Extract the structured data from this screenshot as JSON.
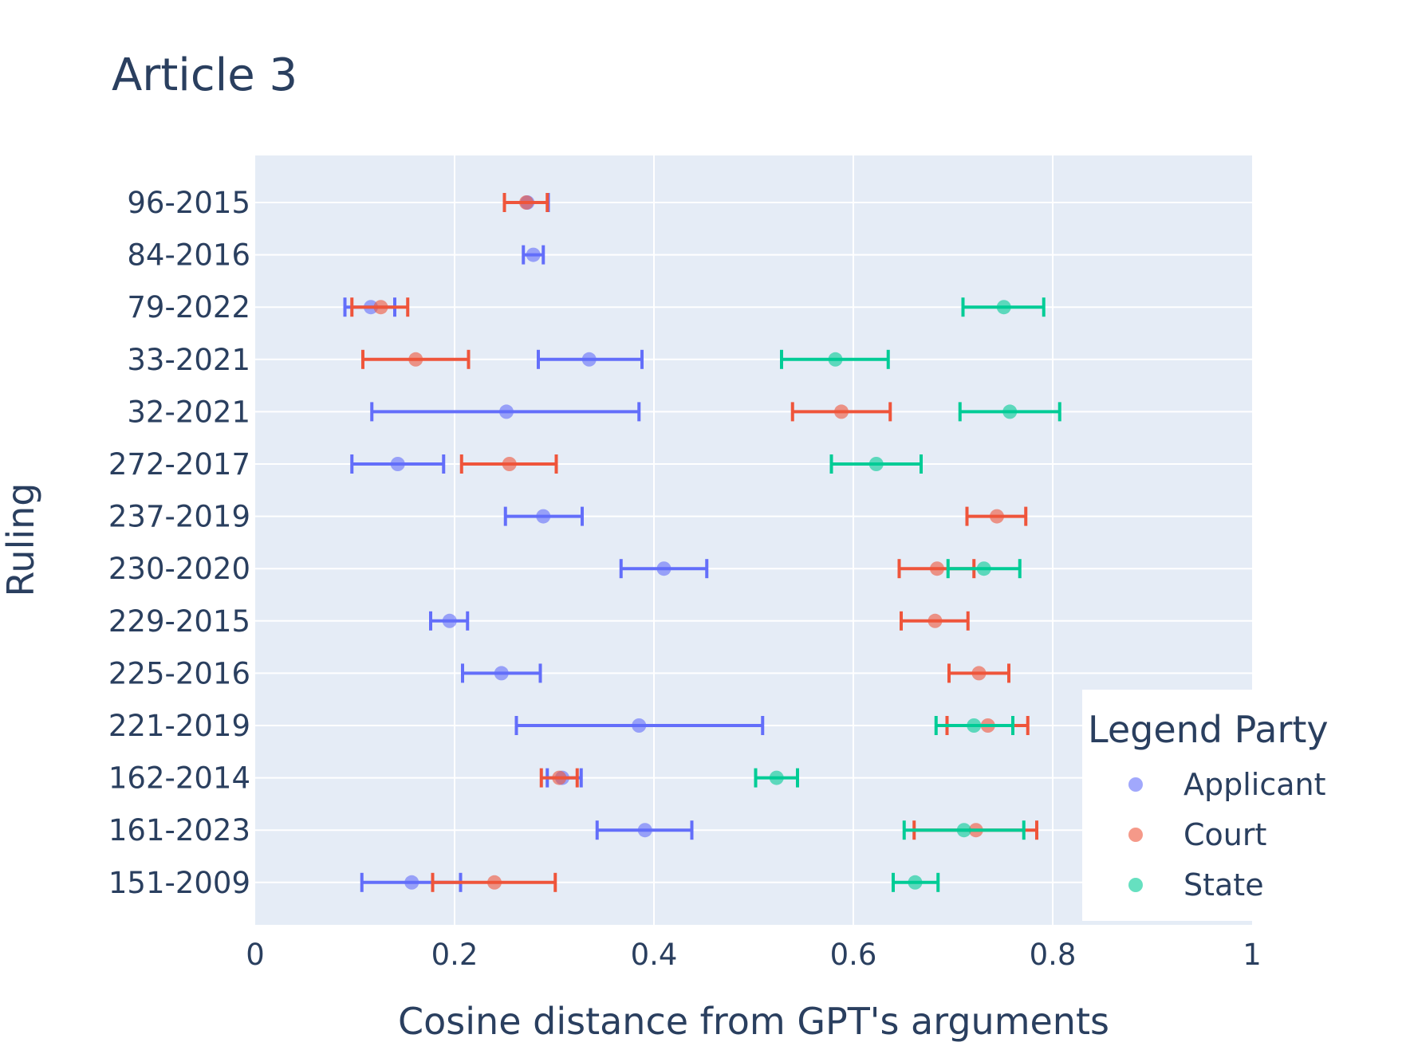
{
  "chart_data": {
    "type": "scatter",
    "title": "Article 3",
    "xlabel": "Cosine distance from GPT's arguments",
    "ylabel": "Ruling",
    "xlim": [
      0,
      1
    ],
    "xticks": [
      0,
      0.2,
      0.4,
      0.6,
      0.8,
      1
    ],
    "xtick_labels": [
      "0",
      "0.2",
      "0.4",
      "0.6",
      "0.8",
      "1"
    ],
    "grid": true,
    "error_bars": true,
    "categories": [
      "96-2015",
      "84-2016",
      "79-2022",
      "33-2021",
      "32-2021",
      "272-2017",
      "237-2019",
      "230-2020",
      "229-2015",
      "225-2016",
      "221-2019",
      "162-2014",
      "161-2023",
      "151-2009"
    ],
    "legend": {
      "title": "Legend Party",
      "position": "right"
    },
    "series": [
      {
        "name": "Applicant",
        "color": "#636efa",
        "points": [
          {
            "y": "96-2015",
            "x": 0.273,
            "lo": 0.25,
            "hi": 0.294
          },
          {
            "y": "84-2016",
            "x": 0.279,
            "lo": 0.269,
            "hi": 0.289
          },
          {
            "y": "79-2022",
            "x": 0.116,
            "lo": 0.09,
            "hi": 0.14
          },
          {
            "y": "33-2021",
            "x": 0.335,
            "lo": 0.284,
            "hi": 0.388
          },
          {
            "y": "32-2021",
            "x": 0.252,
            "lo": 0.117,
            "hi": 0.385
          },
          {
            "y": "272-2017",
            "x": 0.143,
            "lo": 0.097,
            "hi": 0.189
          },
          {
            "y": "237-2019",
            "x": 0.289,
            "lo": 0.251,
            "hi": 0.328
          },
          {
            "y": "230-2020",
            "x": 0.41,
            "lo": 0.367,
            "hi": 0.453
          },
          {
            "y": "229-2015",
            "x": 0.195,
            "lo": 0.176,
            "hi": 0.213
          },
          {
            "y": "225-2016",
            "x": 0.247,
            "lo": 0.208,
            "hi": 0.286
          },
          {
            "y": "221-2019",
            "x": 0.385,
            "lo": 0.262,
            "hi": 0.509
          },
          {
            "y": "162-2014",
            "x": 0.308,
            "lo": 0.293,
            "hi": 0.327
          },
          {
            "y": "161-2023",
            "x": 0.391,
            "lo": 0.343,
            "hi": 0.438
          },
          {
            "y": "151-2009",
            "x": 0.157,
            "lo": 0.107,
            "hi": 0.206
          }
        ]
      },
      {
        "name": "Court",
        "color": "#ef553b",
        "points": [
          {
            "y": "96-2015",
            "x": 0.272,
            "lo": 0.25,
            "hi": 0.293
          },
          {
            "y": "79-2022",
            "x": 0.126,
            "lo": 0.097,
            "hi": 0.153
          },
          {
            "y": "33-2021",
            "x": 0.161,
            "lo": 0.108,
            "hi": 0.214
          },
          {
            "y": "32-2021",
            "x": 0.588,
            "lo": 0.539,
            "hi": 0.637
          },
          {
            "y": "272-2017",
            "x": 0.255,
            "lo": 0.207,
            "hi": 0.302
          },
          {
            "y": "237-2019",
            "x": 0.744,
            "lo": 0.714,
            "hi": 0.773
          },
          {
            "y": "230-2020",
            "x": 0.684,
            "lo": 0.646,
            "hi": 0.721
          },
          {
            "y": "229-2015",
            "x": 0.682,
            "lo": 0.648,
            "hi": 0.715
          },
          {
            "y": "225-2016",
            "x": 0.726,
            "lo": 0.696,
            "hi": 0.756
          },
          {
            "y": "221-2019",
            "x": 0.735,
            "lo": 0.694,
            "hi": 0.775
          },
          {
            "y": "162-2014",
            "x": 0.305,
            "lo": 0.287,
            "hi": 0.323
          },
          {
            "y": "161-2023",
            "x": 0.723,
            "lo": 0.661,
            "hi": 0.784
          },
          {
            "y": "151-2009",
            "x": 0.24,
            "lo": 0.178,
            "hi": 0.301
          }
        ]
      },
      {
        "name": "State",
        "color": "#00cc96",
        "points": [
          {
            "y": "79-2022",
            "x": 0.751,
            "lo": 0.71,
            "hi": 0.791
          },
          {
            "y": "33-2021",
            "x": 0.582,
            "lo": 0.528,
            "hi": 0.635
          },
          {
            "y": "32-2021",
            "x": 0.757,
            "lo": 0.707,
            "hi": 0.807
          },
          {
            "y": "272-2017",
            "x": 0.623,
            "lo": 0.578,
            "hi": 0.668
          },
          {
            "y": "230-2020",
            "x": 0.731,
            "lo": 0.695,
            "hi": 0.767
          },
          {
            "y": "221-2019",
            "x": 0.721,
            "lo": 0.683,
            "hi": 0.76
          },
          {
            "y": "162-2014",
            "x": 0.523,
            "lo": 0.502,
            "hi": 0.544
          },
          {
            "y": "161-2023",
            "x": 0.711,
            "lo": 0.651,
            "hi": 0.771
          },
          {
            "y": "151-2009",
            "x": 0.662,
            "lo": 0.64,
            "hi": 0.685
          }
        ]
      }
    ]
  }
}
